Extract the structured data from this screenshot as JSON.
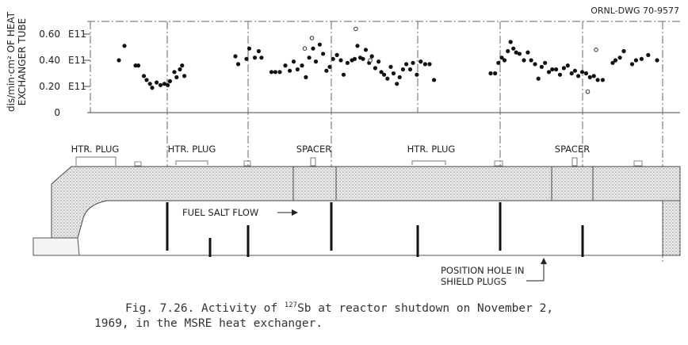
{
  "drawing_number": "ORNL-DWG 70-9577",
  "chart_data": {
    "type": "scatter",
    "ylabel_line1": "dis/min·cm² OF HEAT",
    "ylabel_line2": "EXCHANGER TUBE",
    "y_ticks": [
      {
        "value": 0.6,
        "label": "0.60",
        "exp": "E11"
      },
      {
        "value": 0.4,
        "label": "0.40",
        "exp": "E11"
      },
      {
        "value": 0.2,
        "label": "0.20",
        "exp": "E11"
      },
      {
        "value": 0.0,
        "label": "0",
        "exp": ""
      }
    ],
    "ylim": [
      0,
      0.62
    ],
    "xlim": [
      0,
      100
    ],
    "grid": false,
    "series": [
      {
        "marker": "filled",
        "points": [
          [
            0,
            0.4
          ],
          [
            1,
            0.51
          ],
          [
            3,
            0.36
          ],
          [
            3.5,
            0.36
          ],
          [
            4.5,
            0.28
          ],
          [
            5,
            0.25
          ],
          [
            5.6,
            0.22
          ],
          [
            6,
            0.19
          ],
          [
            6.8,
            0.23
          ],
          [
            7.5,
            0.21
          ],
          [
            8.2,
            0.22
          ],
          [
            8.8,
            0.21
          ],
          [
            9.2,
            0.24
          ],
          [
            10,
            0.31
          ],
          [
            10.4,
            0.27
          ],
          [
            11,
            0.33
          ],
          [
            11.4,
            0.36
          ],
          [
            11.8,
            0.28
          ],
          [
            21,
            0.43
          ],
          [
            21.5,
            0.37
          ],
          [
            23,
            0.41
          ],
          [
            23.5,
            0.49
          ],
          [
            24.5,
            0.42
          ],
          [
            25.2,
            0.47
          ],
          [
            25.7,
            0.42
          ],
          [
            27.5,
            0.31
          ],
          [
            28.2,
            0.31
          ],
          [
            29,
            0.31
          ],
          [
            30,
            0.36
          ],
          [
            30.8,
            0.32
          ],
          [
            31.5,
            0.39
          ],
          [
            32.2,
            0.33
          ],
          [
            33,
            0.36
          ],
          [
            33.7,
            0.27
          ],
          [
            34.3,
            0.42
          ],
          [
            35,
            0.49
          ],
          [
            35.5,
            0.39
          ],
          [
            36.2,
            0.52
          ],
          [
            36.8,
            0.45
          ],
          [
            37.4,
            0.32
          ],
          [
            38,
            0.35
          ],
          [
            38.6,
            0.41
          ],
          [
            39.3,
            0.44
          ],
          [
            40,
            0.4
          ],
          [
            40.5,
            0.29
          ],
          [
            41.2,
            0.38
          ],
          [
            42,
            0.4
          ],
          [
            42.5,
            0.41
          ],
          [
            43,
            0.51
          ],
          [
            43.5,
            0.42
          ],
          [
            44,
            0.41
          ],
          [
            44.5,
            0.48
          ],
          [
            45.1,
            0.38
          ],
          [
            45.6,
            0.43
          ],
          [
            46.2,
            0.34
          ],
          [
            46.8,
            0.39
          ],
          [
            47.3,
            0.31
          ],
          [
            47.8,
            0.29
          ],
          [
            48.4,
            0.26
          ],
          [
            49,
            0.35
          ],
          [
            49.5,
            0.3
          ],
          [
            50.1,
            0.22
          ],
          [
            50.6,
            0.27
          ],
          [
            51.2,
            0.33
          ],
          [
            51.8,
            0.37
          ],
          [
            52.5,
            0.33
          ],
          [
            53,
            0.38
          ],
          [
            53.7,
            0.29
          ],
          [
            54.4,
            0.39
          ],
          [
            55.2,
            0.37
          ],
          [
            56,
            0.37
          ],
          [
            56.8,
            0.25
          ],
          [
            67,
            0.3
          ],
          [
            67.8,
            0.3
          ],
          [
            68.4,
            0.38
          ],
          [
            69,
            0.42
          ],
          [
            69.5,
            0.4
          ],
          [
            70.1,
            0.47
          ],
          [
            70.6,
            0.54
          ],
          [
            71.1,
            0.49
          ],
          [
            71.6,
            0.46
          ],
          [
            72.2,
            0.45
          ],
          [
            73,
            0.4
          ],
          [
            73.7,
            0.46
          ],
          [
            74.3,
            0.4
          ],
          [
            75,
            0.37
          ],
          [
            75.6,
            0.26
          ],
          [
            76.2,
            0.35
          ],
          [
            76.8,
            0.38
          ],
          [
            77.5,
            0.31
          ],
          [
            78.1,
            0.33
          ],
          [
            78.8,
            0.33
          ],
          [
            79.5,
            0.29
          ],
          [
            80.2,
            0.34
          ],
          [
            80.9,
            0.36
          ],
          [
            81.6,
            0.3
          ],
          [
            82.2,
            0.32
          ],
          [
            82.8,
            0.28
          ],
          [
            83.5,
            0.31
          ],
          [
            84.2,
            0.3
          ],
          [
            84.9,
            0.27
          ],
          [
            85.6,
            0.28
          ],
          [
            86.3,
            0.25
          ],
          [
            87.2,
            0.25
          ],
          [
            89,
            0.38
          ],
          [
            89.5,
            0.4
          ],
          [
            90.3,
            0.42
          ],
          [
            91,
            0.47
          ],
          [
            92.5,
            0.37
          ],
          [
            93.2,
            0.4
          ],
          [
            94.2,
            0.41
          ],
          [
            95.4,
            0.44
          ],
          [
            97,
            0.4
          ]
        ]
      },
      {
        "marker": "open",
        "points": [
          [
            33.5,
            0.49
          ],
          [
            34.8,
            0.57
          ],
          [
            42.7,
            0.64
          ],
          [
            45.3,
            0.4
          ],
          [
            84.5,
            0.16
          ],
          [
            86,
            0.48
          ]
        ]
      }
    ]
  },
  "region_labels": {
    "htr_plug_1": "HTR. PLUG",
    "htr_plug_2": "HTR. PLUG",
    "spacer_1": "SPACER",
    "htr_plug_3": "HTR. PLUG",
    "spacer_2": "SPACER"
  },
  "flow_label": "FUEL SALT FLOW",
  "position_hole_label_line1": "POSITION HOLE IN",
  "position_hole_label_line2": "SHIELD PLUGS",
  "caption": {
    "line1_before_sup": "Fig. 7.26.  Activity of ",
    "isotope_mass": "127",
    "line1_after_sup": "Sb at reactor shutdown on November 2,",
    "line2": "1969, in the MSRE heat exchanger."
  }
}
